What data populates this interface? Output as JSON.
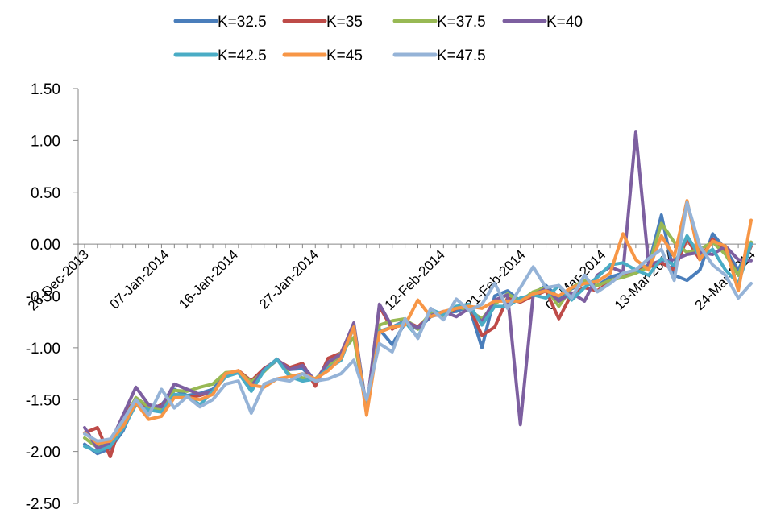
{
  "chart_data": {
    "type": "line",
    "title": "",
    "xlabel": "",
    "ylabel": "",
    "ylim": [
      -2.5,
      1.5
    ],
    "y_ticks": [
      "1.50",
      "1.00",
      "0.50",
      "0.00",
      "-0.50",
      "-1.00",
      "-1.50",
      "-2.00",
      "-2.50"
    ],
    "x_tick_labels": [
      "26-Dec-2013",
      "07-Jan-2014",
      "16-Jan-2014",
      "27-Jan-2014",
      "12-Feb-2014",
      "21-Feb-2014",
      "04-Mar-2014",
      "13-Mar-2014",
      "24-Mar-2014"
    ],
    "legend_position": "top",
    "grid": false,
    "series": [
      {
        "name": "K=32.5",
        "color": "#4a7ebb",
        "values": [
          -1.93,
          -2.02,
          -1.97,
          -1.8,
          -1.52,
          -1.6,
          -1.55,
          -1.4,
          -1.46,
          -1.44,
          -1.4,
          -1.26,
          -1.23,
          -1.35,
          -1.22,
          -1.12,
          -1.21,
          -1.2,
          -1.32,
          -1.15,
          -1.08,
          -0.78,
          -1.63,
          -0.82,
          -0.97,
          -0.76,
          -0.82,
          -0.7,
          -0.66,
          -0.65,
          -0.6,
          -1.0,
          -0.5,
          -0.45,
          -0.55,
          -0.48,
          -0.4,
          -0.52,
          -0.43,
          -0.38,
          -0.4,
          -0.32,
          -0.28,
          -0.26,
          -0.2,
          0.28,
          -0.3,
          -0.35,
          -0.25,
          0.1,
          -0.05,
          -0.25,
          0.01
        ]
      },
      {
        "name": "K=35",
        "color": "#be4b48",
        "values": [
          -1.82,
          -1.77,
          -2.05,
          -1.65,
          -1.5,
          -1.6,
          -1.55,
          -1.45,
          -1.48,
          -1.46,
          -1.42,
          -1.28,
          -1.22,
          -1.32,
          -1.2,
          -1.12,
          -1.19,
          -1.15,
          -1.37,
          -1.1,
          -1.05,
          -0.78,
          -1.6,
          -0.6,
          -0.82,
          -0.74,
          -0.8,
          -0.68,
          -0.69,
          -0.62,
          -0.6,
          -0.88,
          -0.8,
          -0.52,
          -0.56,
          -0.5,
          -0.45,
          -0.72,
          -0.48,
          -0.42,
          -0.45,
          -0.36,
          -0.3,
          -0.27,
          -0.22,
          -0.18,
          -0.25,
          0.05,
          -0.15,
          0.05,
          -0.08,
          -0.3,
          -0.02
        ]
      },
      {
        "name": "K=37.5",
        "color": "#98b954",
        "values": [
          -1.87,
          -1.96,
          -1.9,
          -1.72,
          -1.48,
          -1.57,
          -1.6,
          -1.41,
          -1.42,
          -1.38,
          -1.35,
          -1.24,
          -1.23,
          -1.33,
          -1.23,
          -1.11,
          -1.26,
          -1.29,
          -1.3,
          -1.18,
          -1.05,
          -0.9,
          -1.6,
          -0.78,
          -0.74,
          -0.72,
          -0.82,
          -0.66,
          -0.7,
          -0.6,
          -0.64,
          -0.72,
          -0.58,
          -0.48,
          -0.55,
          -0.46,
          -0.42,
          -0.6,
          -0.42,
          -0.35,
          -0.4,
          -0.35,
          -0.32,
          -0.28,
          -0.22,
          0.2,
          0.02,
          -0.08,
          -0.05,
          0.02,
          -0.1,
          -0.3,
          0.02
        ]
      },
      {
        "name": "K=40",
        "color": "#7d5fa0",
        "values": [
          -1.77,
          -1.97,
          -1.92,
          -1.65,
          -1.38,
          -1.55,
          -1.57,
          -1.35,
          -1.4,
          -1.45,
          -1.42,
          -1.27,
          -1.24,
          -1.37,
          -1.21,
          -1.11,
          -1.21,
          -1.17,
          -1.32,
          -1.14,
          -1.06,
          -0.76,
          -1.6,
          -0.58,
          -0.8,
          -0.74,
          -0.81,
          -0.69,
          -0.65,
          -0.7,
          -0.62,
          -0.75,
          -0.54,
          -0.49,
          -1.74,
          -0.49,
          -0.43,
          -0.55,
          -0.47,
          -0.55,
          -0.3,
          -0.22,
          -0.27,
          1.08,
          -0.2,
          -0.16,
          -0.15,
          -0.1,
          -0.08,
          -0.1,
          -0.02,
          -0.15,
          -0.16
        ]
      },
      {
        "name": "K=42.5",
        "color": "#4aacc5",
        "values": [
          -1.95,
          -2.0,
          -1.95,
          -1.78,
          -1.55,
          -1.6,
          -1.62,
          -1.45,
          -1.46,
          -1.55,
          -1.42,
          -1.28,
          -1.24,
          -1.42,
          -1.22,
          -1.11,
          -1.28,
          -1.32,
          -1.3,
          -1.2,
          -1.12,
          -0.8,
          -1.62,
          -0.84,
          -0.8,
          -0.75,
          -0.9,
          -0.63,
          -0.68,
          -0.6,
          -0.58,
          -0.78,
          -0.6,
          -0.6,
          -0.52,
          -0.49,
          -0.52,
          -0.4,
          -0.54,
          -0.42,
          -0.32,
          -0.2,
          -0.18,
          -0.25,
          -0.3,
          -0.14,
          -0.2,
          0.08,
          -0.12,
          -0.05,
          -0.25,
          -0.38,
          0.0
        ]
      },
      {
        "name": "K=45",
        "color": "#f79646",
        "values": [
          -1.82,
          -1.92,
          -1.9,
          -1.76,
          -1.53,
          -1.69,
          -1.66,
          -1.48,
          -1.48,
          -1.5,
          -1.45,
          -1.25,
          -1.22,
          -1.36,
          -1.38,
          -1.3,
          -1.28,
          -1.25,
          -1.3,
          -1.22,
          -1.1,
          -0.8,
          -1.65,
          -0.85,
          -0.8,
          -0.78,
          -0.54,
          -0.7,
          -0.65,
          -0.62,
          -0.6,
          -0.62,
          -0.55,
          -0.55,
          -0.55,
          -0.48,
          -0.45,
          -0.5,
          -0.42,
          -0.38,
          -0.36,
          -0.28,
          0.1,
          -0.15,
          -0.25,
          0.08,
          -0.12,
          0.42,
          -0.15,
          0.03,
          -0.02,
          -0.45,
          0.23
        ]
      },
      {
        "name": "K=47.5",
        "color": "#95b3d7",
        "values": [
          -1.83,
          -1.9,
          -1.88,
          -1.7,
          -1.5,
          -1.65,
          -1.4,
          -1.58,
          -1.47,
          -1.57,
          -1.5,
          -1.35,
          -1.32,
          -1.63,
          -1.35,
          -1.3,
          -1.32,
          -1.25,
          -1.32,
          -1.3,
          -1.25,
          -1.12,
          -1.5,
          -0.96,
          -1.04,
          -0.72,
          -0.91,
          -0.62,
          -0.73,
          -0.53,
          -0.64,
          -0.58,
          -0.38,
          -0.62,
          -0.42,
          -0.22,
          -0.42,
          -0.4,
          -0.52,
          -0.3,
          -0.46,
          -0.38,
          -0.28,
          -0.25,
          -0.14,
          -0.05,
          -0.35,
          0.4,
          -0.02,
          -0.2,
          -0.3,
          -0.52,
          -0.38
        ]
      }
    ]
  }
}
